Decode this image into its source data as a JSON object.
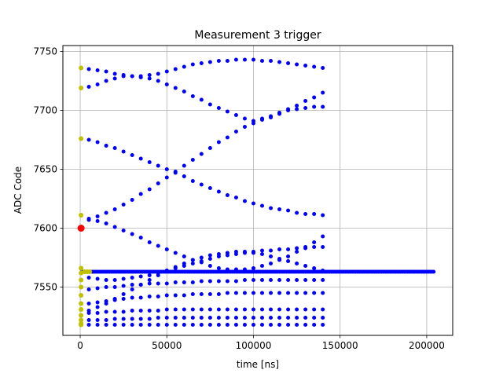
{
  "chart_data": {
    "type": "scatter",
    "title": "Measurement 3 trigger",
    "xlabel": "time [ns]",
    "ylabel": "ADC Code",
    "xlim": [
      -10000,
      215000
    ],
    "ylim": [
      7509,
      7755
    ],
    "xticks": [
      0,
      50000,
      100000,
      150000,
      200000
    ],
    "xtick_labels": [
      "0",
      "50000",
      "100000",
      "150000",
      "200000"
    ],
    "yticks": [
      7550,
      7600,
      7650,
      7700,
      7750
    ],
    "ytick_labels": [
      "7550",
      "7600",
      "7650",
      "7700",
      "7750"
    ],
    "grid": true,
    "legend": "none",
    "colors": {
      "main": "#0000ff",
      "accent": "#bfbf00",
      "marker": "#ff0000",
      "frame": "#000000",
      "grid": "#b0b0b0"
    },
    "series": [
      {
        "color": "#0000ff",
        "description": "dense baseline",
        "x_range": [
          1000,
          204000
        ],
        "x_step": 1000,
        "y": 7563
      },
      {
        "color": "#0000ff",
        "description": "sinusoidal tracks",
        "x_range": [
          5000,
          140000
        ],
        "x_step": 5000,
        "tracks": [
          {
            "y": [
              7735,
              7734,
              7733,
              7731,
              7730,
              7729,
              7729,
              7730,
              7731,
              7733,
              7735,
              7737,
              7739,
              7740,
              7741,
              7742,
              7742,
              7743,
              7743,
              7743,
              7742,
              7742,
              7741,
              7740,
              7739,
              7738,
              7737,
              7736
            ]
          },
          {
            "y": [
              7720,
              7722,
              7725,
              7727,
              7729,
              7729,
              7728,
              7727,
              7725,
              7722,
              7719,
              7716,
              7712,
              7709,
              7705,
              7702,
              7699,
              7696,
              7693,
              7691,
              7692,
              7694,
              7697,
              7701,
              7704,
              7708,
              7711,
              7715
            ]
          },
          {
            "y": [
              7675,
              7673,
              7670,
              7668,
              7665,
              7662,
              7659,
              7656,
              7653,
              7650,
              7647,
              7644,
              7640,
              7637,
              7634,
              7631,
              7628,
              7626,
              7623,
              7621,
              7619,
              7617,
              7616,
              7615,
              7613,
              7612,
              7612,
              7611
            ]
          },
          {
            "y": [
              7608,
              7610,
              7613,
              7616,
              7620,
              7624,
              7629,
              7633,
              7638,
              7643,
              7648,
              7653,
              7658,
              7663,
              7668,
              7673,
              7677,
              7682,
              7686,
              7689,
              7693,
              7695,
              7698,
              7700,
              7701,
              7702,
              7703,
              7703
            ]
          },
          {
            "y": [
              7607,
              7606,
              7604,
              7601,
              7598,
              7595,
              7592,
              7588,
              7585,
              7582,
              7579,
              7576,
              7573,
              7571,
              7568,
              7566,
              7565,
              7565,
              7565,
              7566,
              7568,
              7570,
              7573,
              7576,
              7580,
              7584,
              7588,
              7593
            ]
          },
          {
            "y": [
              7530,
              7533,
              7536,
              7540,
              7544,
              7548,
              7552,
              7556,
              7560,
              7564,
              7567,
              7570,
              7573,
              7575,
              7577,
              7578,
              7579,
              7580,
              7580,
              7579,
              7578,
              7576,
              7574,
              7572,
              7570,
              7568,
              7566,
              7564
            ]
          },
          {
            "y": [
              7558,
              7557,
              7556,
              7556,
              7557,
              7558,
              7559,
              7560,
              7562,
              7564,
              7566,
              7568,
              7570,
              7572,
              7574,
              7576,
              7577,
              7578,
              7579,
              7580,
              7581,
              7581,
              7582,
              7582,
              7583,
              7583,
              7584,
              7584
            ]
          },
          {
            "y": [
              7548,
              7549,
              7550,
              7550,
              7551,
              7552,
              7552,
              7553,
              7553,
              7553,
              7554,
              7554,
              7554,
              7555,
              7555,
              7555,
              7555,
              7555,
              7556,
              7556,
              7556,
              7556,
              7556,
              7556,
              7556,
              7556,
              7556,
              7556
            ]
          },
          {
            "y": [
              7536,
              7537,
              7538,
              7539,
              7540,
              7541,
              7541,
              7542,
              7542,
              7543,
              7543,
              7543,
              7544,
              7544,
              7544,
              7544,
              7545,
              7545,
              7545,
              7545,
              7545,
              7545,
              7545,
              7545,
              7545,
              7545,
              7545,
              7545
            ]
          },
          {
            "y": [
              7528,
              7528,
              7529,
              7529,
              7529,
              7530,
              7530,
              7530,
              7530,
              7531,
              7531,
              7531,
              7531,
              7531,
              7531,
              7531,
              7531,
              7531,
              7531,
              7531,
              7531,
              7531,
              7531,
              7531,
              7531,
              7531,
              7531,
              7531
            ]
          },
          {
            "y": [
              7522,
              7522,
              7522,
              7523,
              7523,
              7523,
              7523,
              7523,
              7524,
              7524,
              7524,
              7524,
              7524,
              7524,
              7524,
              7524,
              7524,
              7524,
              7524,
              7524,
              7524,
              7524,
              7524,
              7524,
              7524,
              7524,
              7524,
              7524
            ]
          },
          {
            "y": [
              7518,
              7518,
              7518,
              7518,
              7518,
              7518,
              7518,
              7518,
              7518,
              7518,
              7518,
              7518,
              7518,
              7518,
              7518,
              7518,
              7518,
              7518,
              7518,
              7518,
              7518,
              7518,
              7518,
              7518,
              7518,
              7518,
              7518,
              7518
            ]
          }
        ]
      },
      {
        "color": "#bfbf00",
        "description": "early samples",
        "points": [
          [
            500,
            7736
          ],
          [
            500,
            7719
          ],
          [
            500,
            7676
          ],
          [
            500,
            7611
          ],
          [
            500,
            7566
          ],
          [
            500,
            7562
          ],
          [
            500,
            7556
          ],
          [
            500,
            7550
          ],
          [
            500,
            7543
          ],
          [
            500,
            7536
          ],
          [
            500,
            7531
          ],
          [
            500,
            7526
          ],
          [
            500,
            7522
          ],
          [
            500,
            7519
          ],
          [
            500,
            7518
          ],
          [
            2500,
            7563
          ],
          [
            4000,
            7563
          ],
          [
            5500,
            7563
          ]
        ]
      },
      {
        "color": "#ff0000",
        "description": "trigger marker",
        "points": [
          [
            500,
            7600
          ]
        ]
      }
    ]
  }
}
